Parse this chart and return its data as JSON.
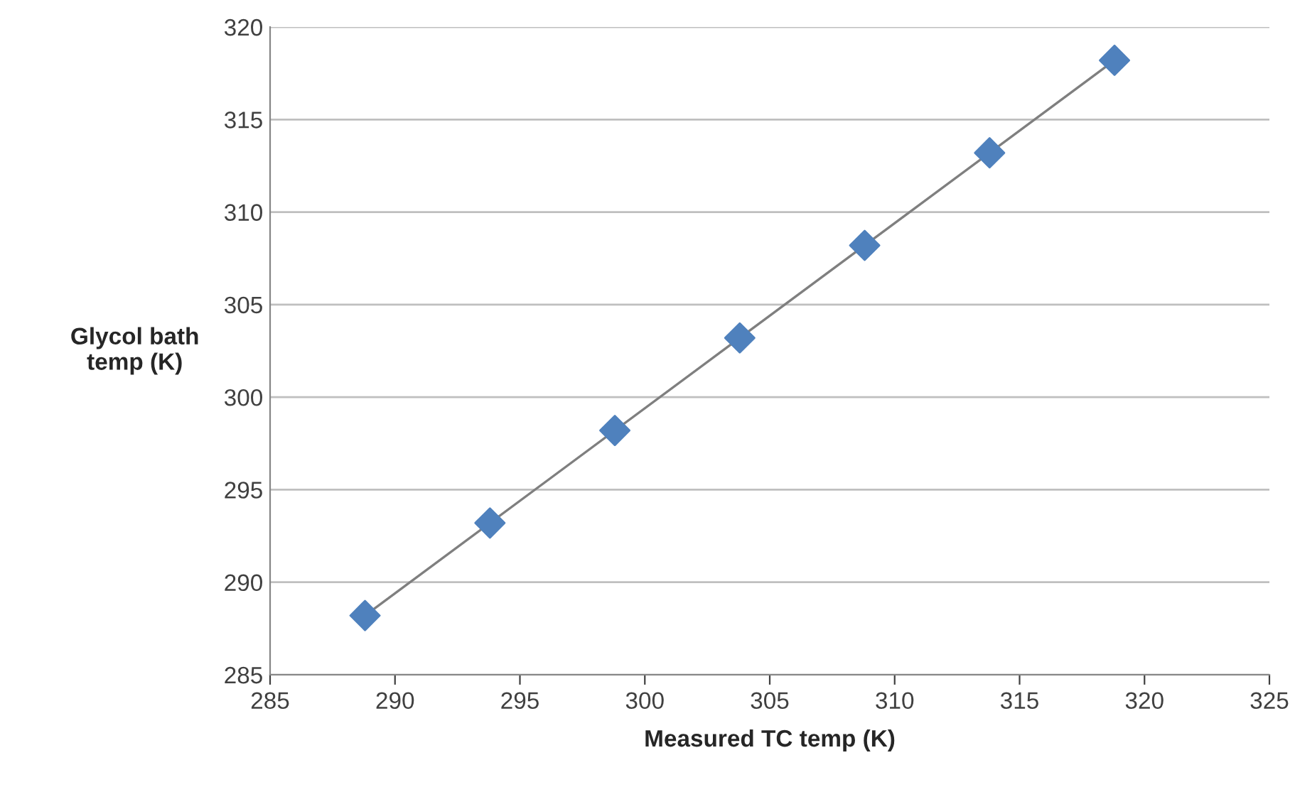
{
  "chart_data": {
    "type": "scatter",
    "xlabel": "Measured TC temp (K)",
    "ylabel": "Glycol bath\ntemp (K)",
    "series": [
      {
        "color": "#4f81bd",
        "marker": "diamond",
        "x": [
          288.8,
          293.8,
          298.8,
          303.8,
          308.8,
          313.8,
          318.8
        ],
        "values": [
          288.2,
          293.2,
          298.2,
          303.2,
          308.2,
          313.2,
          318.2
        ]
      },
      {
        "type": "line",
        "color": "#7f7f7f",
        "marker": "none",
        "x": [
          288.8,
          318.8
        ],
        "values": [
          288.2,
          318.2
        ]
      }
    ],
    "xlim": [
      285,
      325
    ],
    "xticks": [
      285,
      290,
      295,
      300,
      305,
      310,
      315,
      320,
      325
    ],
    "ylim": [
      285,
      320
    ],
    "yticks": [
      285,
      290,
      295,
      300,
      305,
      310,
      315,
      320
    ],
    "grid": "y",
    "legend": false
  }
}
